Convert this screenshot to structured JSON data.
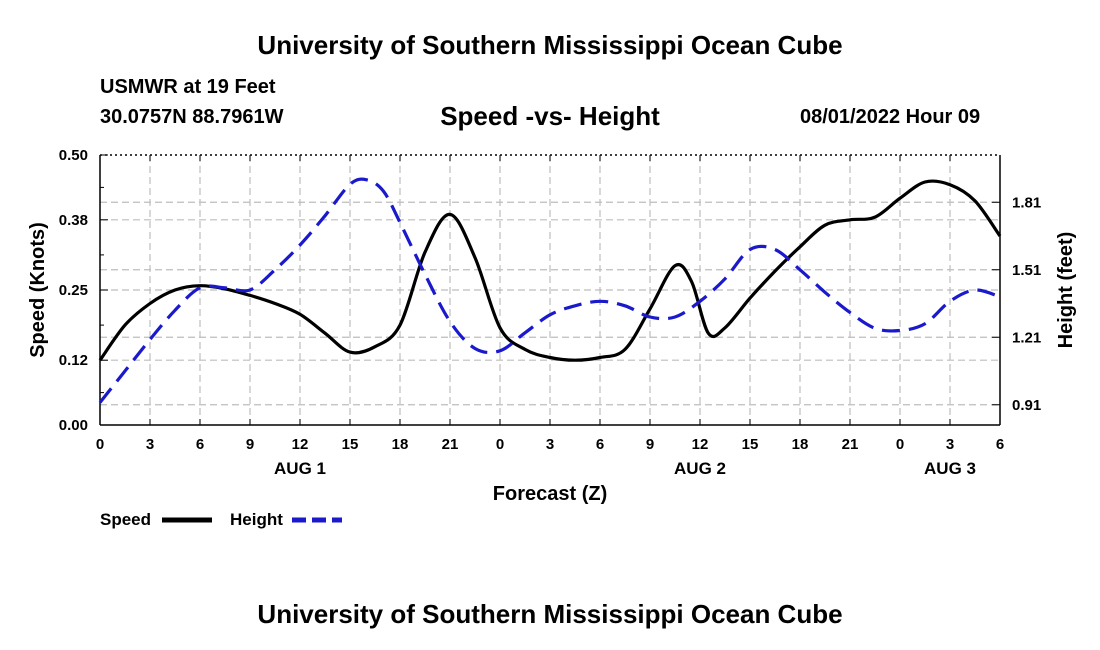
{
  "header": {
    "title": "University of Southern Mississippi Ocean Cube",
    "station": "USMWR at 19 Feet",
    "coords": "30.0757N  88.7961W",
    "run_time": "08/01/2022 Hour 09"
  },
  "footer": {
    "title": "University of Southern Mississippi Ocean Cube"
  },
  "colors": {
    "speed": "#000000",
    "height": "#1a1acc",
    "grid": "#bdbdbd"
  },
  "chart_data": {
    "type": "line",
    "title": "Speed -vs- Height",
    "xlabel": "Forecast (Z)",
    "ylabel": "Speed (Knots)",
    "y2label": "Height (feet)",
    "x_tick_labels": [
      "0",
      "3",
      "6",
      "9",
      "12",
      "15",
      "18",
      "21",
      "0",
      "3",
      "6",
      "9",
      "12",
      "15",
      "18",
      "21",
      "0",
      "3",
      "6"
    ],
    "x_date_labels": [
      {
        "label": "AUG 1",
        "hour": 12
      },
      {
        "label": "AUG 2",
        "hour": 36
      },
      {
        "label": "AUG 3",
        "hour": 51
      }
    ],
    "xlim": [
      0,
      54
    ],
    "ylim": [
      0,
      0.5
    ],
    "y_ticks": [
      0.0,
      0.12,
      0.25,
      0.38,
      0.5
    ],
    "y_tick_labels": [
      "0.00",
      "0.12",
      "0.25",
      "0.38",
      "0.50"
    ],
    "y2lim": [
      0.82,
      2.02
    ],
    "y2_ticks": [
      0.91,
      1.21,
      1.51,
      1.81
    ],
    "y2_tick_labels": [
      "0.91",
      "1.21",
      "1.51",
      "1.81"
    ],
    "grid": true,
    "legend": "bottom-left",
    "series": [
      {
        "name": "Speed",
        "axis": "left",
        "style": "solid",
        "x": [
          0,
          1.5,
          3,
          4.5,
          6,
          7.5,
          9,
          10.5,
          12,
          13.5,
          15,
          16.5,
          18,
          19.5,
          21,
          22.5,
          24,
          25.5,
          27,
          28.5,
          30,
          31.5,
          33,
          34.5,
          35.5,
          36.5,
          37.5,
          39,
          40.5,
          42,
          43.5,
          45,
          46.5,
          48,
          49.5,
          51,
          52.5,
          54
        ],
        "y": [
          0.12,
          0.185,
          0.225,
          0.25,
          0.258,
          0.252,
          0.24,
          0.225,
          0.205,
          0.17,
          0.135,
          0.145,
          0.185,
          0.32,
          0.39,
          0.31,
          0.18,
          0.14,
          0.125,
          0.12,
          0.125,
          0.14,
          0.215,
          0.295,
          0.265,
          0.17,
          0.18,
          0.235,
          0.285,
          0.33,
          0.37,
          0.38,
          0.385,
          0.42,
          0.45,
          0.445,
          0.415,
          0.35
        ]
      },
      {
        "name": "Height",
        "axis": "right",
        "style": "dashed",
        "x": [
          0,
          1.5,
          3,
          4.5,
          6,
          7.5,
          9,
          10.5,
          12,
          13.5,
          15,
          16,
          17,
          18,
          19.5,
          21,
          22.5,
          24,
          25.5,
          27,
          28.5,
          30,
          31.5,
          33,
          34.5,
          36,
          37.5,
          39,
          40.5,
          42,
          43.5,
          45,
          46.5,
          48,
          49.5,
          51,
          52.5,
          54
        ],
        "y": [
          0.92,
          1.06,
          1.2,
          1.33,
          1.43,
          1.43,
          1.42,
          1.51,
          1.62,
          1.75,
          1.89,
          1.91,
          1.86,
          1.72,
          1.49,
          1.28,
          1.16,
          1.15,
          1.23,
          1.31,
          1.35,
          1.37,
          1.35,
          1.3,
          1.3,
          1.37,
          1.47,
          1.6,
          1.6,
          1.51,
          1.41,
          1.32,
          1.25,
          1.24,
          1.27,
          1.37,
          1.42,
          1.39
        ]
      }
    ]
  }
}
